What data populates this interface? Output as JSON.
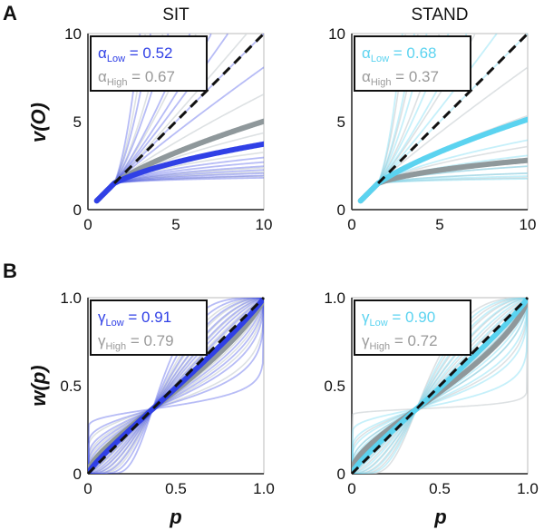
{
  "figure": {
    "panel_labels": [
      "A",
      "B"
    ],
    "row_ylabels": [
      "v(O)",
      "w(p)"
    ],
    "xlabel": "p"
  },
  "colors": {
    "sit": "#3040e6",
    "stand": "#5bd3f0",
    "gray": "#8f989b",
    "light_gray": "#d5dadc",
    "dashed": "#111111"
  },
  "chart_data": [
    {
      "type": "line",
      "panel": "A",
      "title": "SIT",
      "xlim": [
        0,
        10
      ],
      "ylim": [
        0,
        10
      ],
      "xticks": [
        0,
        5,
        10
      ],
      "yticks": [
        5,
        10
      ],
      "legend": {
        "placement": "top-left",
        "entries": [
          {
            "symbol": "α",
            "sub": "Low",
            "text": "= 0.52",
            "color": "#3040e6"
          },
          {
            "symbol": "α",
            "sub": "High",
            "text": "= 0.67",
            "color": "#9a9a9a"
          }
        ]
      },
      "series": [
        {
          "role": "low",
          "alpha": 0.52,
          "color": "#3040e6",
          "highlight": true
        },
        {
          "role": "high",
          "alpha": 0.67,
          "color": "#8f989b",
          "highlight": true
        },
        {
          "role": "identity",
          "style": "dashed"
        }
      ],
      "individual_alphas": {
        "color": "#3040e6",
        "values": [
          0.12,
          0.16,
          0.2,
          0.25,
          0.3,
          0.35,
          0.4,
          0.9,
          1.0,
          1.12,
          1.2,
          1.35,
          1.6,
          2.0,
          2.5
        ]
      },
      "background_alphas": {
        "color": "#d5dadc",
        "values": [
          0.15,
          0.22,
          0.28,
          0.45,
          0.6,
          0.8,
          1.05,
          1.3,
          1.7,
          2.2
        ]
      }
    },
    {
      "type": "line",
      "panel": "A",
      "title": "STAND",
      "xlim": [
        0,
        10
      ],
      "ylim": [
        0,
        10
      ],
      "xticks": [
        0,
        5,
        10
      ],
      "yticks": [
        5,
        10
      ],
      "legend": {
        "placement": "top-left",
        "entries": [
          {
            "symbol": "α",
            "sub": "Low",
            "text": "= 0.68",
            "color": "#5bd3f0"
          },
          {
            "symbol": "α",
            "sub": "High",
            "text": "= 0.37",
            "color": "#9a9a9a"
          }
        ]
      },
      "series": [
        {
          "role": "low",
          "alpha": 0.68,
          "color": "#5bd3f0",
          "highlight": true
        },
        {
          "role": "high",
          "alpha": 0.37,
          "color": "#8f989b",
          "highlight": true
        },
        {
          "role": "identity",
          "style": "dashed"
        }
      ],
      "individual_alphas": {
        "color": "#5bd3f0",
        "values": [
          0.1,
          0.15,
          0.2,
          0.3,
          0.42,
          0.55,
          1.0,
          1.1,
          1.25,
          1.4,
          1.7,
          2.0,
          2.6
        ]
      },
      "background_alphas": {
        "color": "#d5dadc",
        "values": [
          0.12,
          0.2,
          0.3,
          0.5,
          0.7,
          0.9,
          1.2,
          1.5,
          1.9,
          2.4
        ]
      }
    },
    {
      "type": "line",
      "panel": "B",
      "title": "",
      "xlim": [
        0,
        1
      ],
      "ylim": [
        0,
        1
      ],
      "xticks": [
        0,
        0.5,
        1.0
      ],
      "yticks": [
        0.5,
        1.0
      ],
      "legend": {
        "placement": "top-left",
        "entries": [
          {
            "symbol": "γ",
            "sub": "Low",
            "text": "= 0.91",
            "color": "#3040e6"
          },
          {
            "symbol": "γ",
            "sub": "High",
            "text": "= 0.79",
            "color": "#9a9a9a"
          }
        ]
      },
      "series": [
        {
          "role": "low",
          "gamma": 0.91,
          "color": "#3040e6",
          "highlight": true
        },
        {
          "role": "high",
          "gamma": 0.79,
          "color": "#8f989b",
          "highlight": true
        },
        {
          "role": "identity",
          "style": "dashed"
        }
      ],
      "individual_gammas": {
        "color": "#3040e6",
        "values": [
          0.15,
          0.3,
          0.45,
          0.55,
          0.65,
          0.75,
          0.85,
          0.95,
          1.1,
          1.25,
          1.4,
          1.6,
          1.9,
          2.4,
          3.0
        ]
      },
      "background_gammas": {
        "color": "#d5dadc",
        "values": [
          0.35,
          0.5,
          0.6,
          0.7,
          0.8,
          0.88,
          1.05,
          1.15,
          1.35,
          1.55,
          1.8,
          2.1
        ]
      }
    },
    {
      "type": "line",
      "panel": "B",
      "title": "",
      "xlim": [
        0,
        1
      ],
      "ylim": [
        0,
        1
      ],
      "xticks": [
        0,
        0.5,
        1.0
      ],
      "yticks": [
        0.5,
        1.0
      ],
      "legend": {
        "placement": "top-left",
        "entries": [
          {
            "symbol": "γ",
            "sub": "Low",
            "text": "= 0.90",
            "color": "#5bd3f0"
          },
          {
            "symbol": "γ",
            "sub": "High",
            "text": "= 0.72",
            "color": "#9a9a9a"
          }
        ]
      },
      "series": [
        {
          "role": "low",
          "gamma": 0.9,
          "color": "#5bd3f0",
          "highlight": true
        },
        {
          "role": "high",
          "gamma": 0.72,
          "color": "#8f989b",
          "highlight": true
        },
        {
          "role": "identity",
          "style": "dashed"
        }
      ],
      "individual_gammas": {
        "color": "#5bd3f0",
        "values": [
          0.2,
          0.35,
          0.45,
          0.55,
          0.62,
          0.7,
          0.78,
          0.85,
          0.95,
          1.1,
          1.3,
          1.5,
          1.8,
          2.2
        ]
      },
      "background_gammas": {
        "color": "#d5dadc",
        "values": [
          0.05,
          0.4,
          0.55,
          0.68,
          0.8,
          0.9,
          1.05,
          1.2,
          1.45,
          1.7,
          2.0,
          2.5
        ]
      }
    }
  ]
}
